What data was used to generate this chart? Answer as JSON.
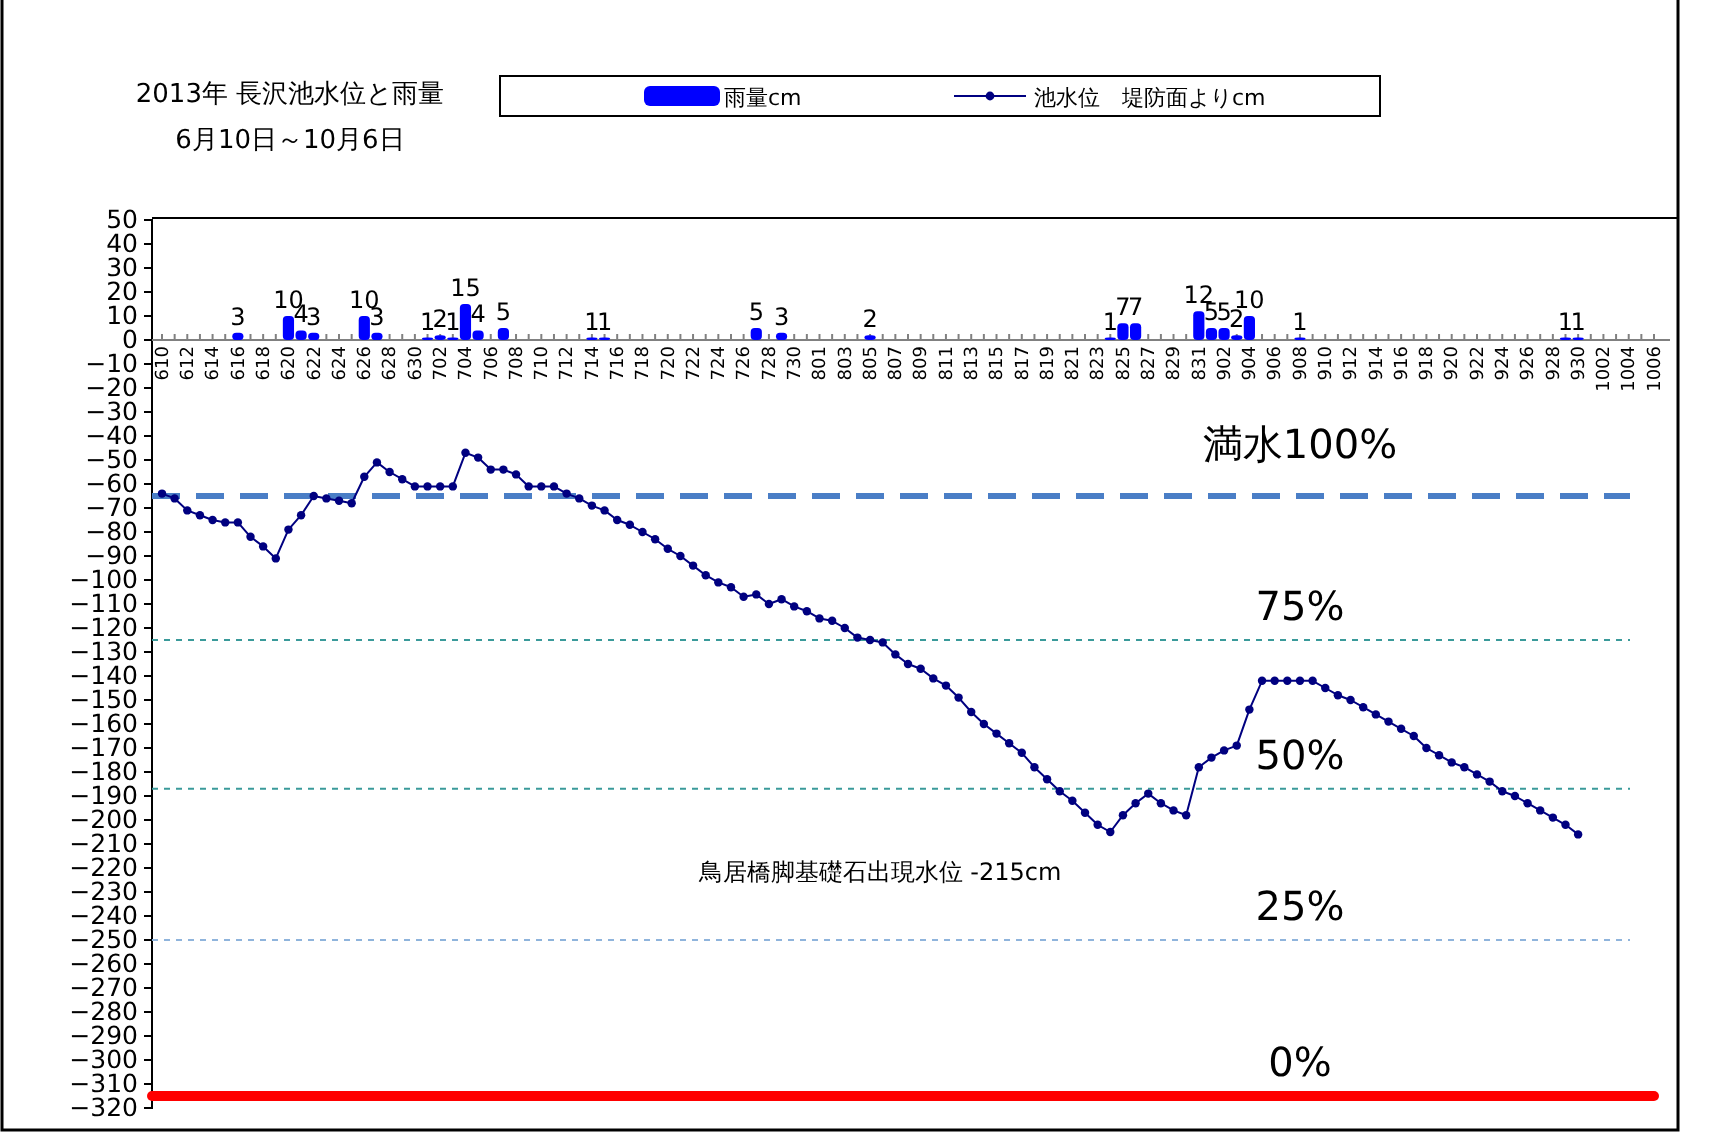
{
  "chart_data": {
    "type": "bar",
    "title": "2013年  長沢池水位と雨量",
    "subtitle": "6月10日～10月6日",
    "categories": [
      "610",
      null,
      "612",
      null,
      "614",
      null,
      "616",
      null,
      "618",
      null,
      "620",
      null,
      "622",
      null,
      "624",
      null,
      "626",
      null,
      "628",
      null,
      "630",
      null,
      "702",
      null,
      "704",
      null,
      "706",
      null,
      "708",
      null,
      "710",
      null,
      "712",
      null,
      "714",
      null,
      "716",
      null,
      "718",
      null,
      "720",
      null,
      "722",
      null,
      "724",
      null,
      "726",
      null,
      "728",
      null,
      "730",
      null,
      "801",
      null,
      "803",
      null,
      "805",
      null,
      "807",
      null,
      "809",
      null,
      "811",
      null,
      "813",
      null,
      "815",
      null,
      "817",
      null,
      "819",
      null,
      "821",
      null,
      "823",
      null,
      "825",
      null,
      "827",
      null,
      "829",
      null,
      "831",
      null,
      "902",
      null,
      "904",
      null,
      "906",
      null,
      "908",
      null,
      "910",
      null,
      "912",
      null,
      "914",
      null,
      "916",
      null,
      "918",
      null,
      "920",
      null,
      "922",
      null,
      "924",
      null,
      "926",
      null,
      "928",
      null,
      "930",
      null,
      "1002",
      null,
      "1004",
      null,
      "1006"
    ],
    "series": [
      {
        "name": "雨量cm",
        "color": "#0000ff",
        "values": [
          null,
          null,
          null,
          null,
          null,
          null,
          3,
          null,
          null,
          null,
          10,
          4,
          3,
          null,
          null,
          null,
          10,
          3,
          null,
          null,
          null,
          1,
          2,
          1,
          15,
          4,
          null,
          5,
          null,
          null,
          null,
          null,
          null,
          null,
          1,
          1,
          null,
          null,
          null,
          null,
          null,
          null,
          null,
          null,
          null,
          null,
          null,
          5,
          null,
          3,
          null,
          null,
          null,
          null,
          null,
          null,
          2,
          null,
          null,
          null,
          null,
          null,
          null,
          null,
          null,
          null,
          null,
          null,
          null,
          null,
          null,
          null,
          null,
          null,
          null,
          1,
          7,
          7,
          null,
          null,
          null,
          null,
          12,
          5,
          5,
          2,
          10,
          null,
          null,
          null,
          1,
          null,
          null,
          null,
          null,
          null,
          null,
          null,
          null,
          null,
          null,
          null,
          null,
          null,
          null,
          null,
          null,
          null,
          null,
          null,
          null,
          1,
          1,
          null,
          null,
          null,
          null,
          null,
          null
        ],
        "value_labels": [
          null,
          null,
          null,
          null,
          null,
          null,
          "3",
          null,
          null,
          null,
          "10",
          "4",
          "3",
          null,
          null,
          null,
          "10",
          "3",
          null,
          null,
          null,
          "1",
          "2",
          "1",
          "15",
          "4",
          null,
          "5",
          null,
          null,
          null,
          null,
          null,
          null,
          "1",
          "1",
          null,
          null,
          null,
          null,
          null,
          null,
          null,
          null,
          null,
          null,
          null,
          "5",
          null,
          "3",
          null,
          null,
          null,
          null,
          null,
          null,
          "2",
          null,
          null,
          null,
          null,
          null,
          null,
          null,
          null,
          null,
          null,
          null,
          null,
          null,
          null,
          null,
          null,
          null,
          null,
          "1",
          "7",
          "7",
          null,
          null,
          null,
          null,
          "12",
          "5",
          "5",
          "2",
          "10",
          null,
          null,
          null,
          "1",
          null,
          null,
          null,
          null,
          null,
          null,
          null,
          null,
          null,
          null,
          null,
          null,
          null,
          null,
          null,
          null,
          null,
          null,
          null,
          null,
          "1",
          "1",
          null,
          null,
          null,
          null,
          null,
          null
        ]
      },
      {
        "type": "line",
        "name": "池水位　堤防面よりcm",
        "color": "#000080",
        "values": [
          -64,
          -66,
          -71,
          -73,
          -75,
          -76,
          -76,
          -82,
          -86,
          -91,
          -79,
          -73,
          -65,
          -66,
          -67,
          -68,
          -57,
          -51,
          -55,
          -58,
          -61,
          -61,
          -61,
          -61,
          -47,
          -49,
          -54,
          -54,
          -56,
          -61,
          -61,
          -61,
          -64,
          -66,
          -69,
          -71,
          -75,
          -77,
          -80,
          -83,
          -87,
          -90,
          -94,
          -98,
          -101,
          -103,
          -107,
          -106,
          -110,
          -108,
          -111,
          -113,
          -116,
          -117,
          -120,
          -124,
          -125,
          -126,
          -131,
          -135,
          -137,
          -141,
          -144,
          -149,
          -155,
          -160,
          -164,
          -168,
          -172,
          -178,
          -183,
          -188,
          -192,
          -197,
          -202,
          -205,
          -198,
          -193,
          -189,
          -193,
          -196,
          -198,
          -178,
          -174,
          -171,
          -169,
          -154,
          -142,
          -142,
          -142,
          -142,
          -142,
          -145,
          -148,
          -150,
          -153,
          -156,
          -159,
          -162,
          -165,
          -170,
          -173,
          -176,
          -178,
          -181,
          -184,
          -188,
          -190,
          -193,
          -196,
          -199,
          -202,
          -206,
          null,
          null,
          null,
          null,
          null,
          null
        ]
      }
    ],
    "ylim": [
      -320,
      50
    ],
    "yticks": [
      50,
      40,
      30,
      20,
      10,
      0,
      -10,
      -20,
      -30,
      -40,
      -50,
      -60,
      -70,
      -80,
      -90,
      -100,
      -110,
      -120,
      -130,
      -140,
      -150,
      -160,
      -170,
      -180,
      -190,
      -200,
      -210,
      -220,
      -230,
      -240,
      -250,
      -260,
      -270,
      -280,
      -290,
      -300,
      -310,
      -320
    ],
    "ref_lines": [
      {
        "axis": "y",
        "value": -65,
        "color": "#4a7ec6",
        "line_style": "dashed"
      },
      {
        "axis": "y",
        "value": -125,
        "color": "#3a9a9a",
        "line_style": "dotted"
      },
      {
        "axis": "y",
        "value": -187,
        "color": "#3a9a9a",
        "line_style": "dotted"
      },
      {
        "axis": "y",
        "value": -250,
        "color": "#8fb4dc",
        "line_style": "dotted"
      },
      {
        "axis": "y",
        "value": -315,
        "color": "#ff0000",
        "line_style": "solid"
      }
    ],
    "annotations": [
      "満水100%",
      "75%",
      "50%",
      "25%",
      "0%",
      "鳥居橋脚基礎石出現水位 -215cm"
    ],
    "marker": "circle",
    "line_style": "solid",
    "legend": "top",
    "grid": false
  }
}
